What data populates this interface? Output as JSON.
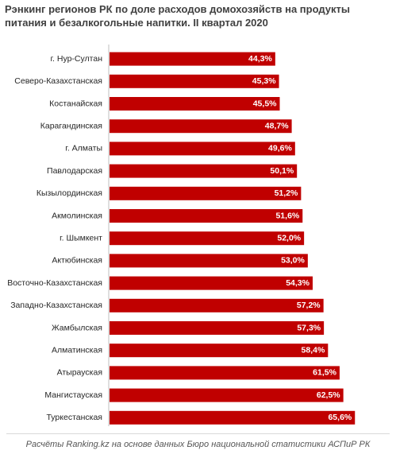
{
  "chart_data": {
    "type": "bar",
    "orientation": "horizontal",
    "title": "Рэнкинг регионов РК по доле расходов домохозяйств на продукты питания и безалкогольные напитки. II квартал 2020",
    "title_lines": [
      "Рэнкинг регионов РК по доле расходов домохозяйств на продукты",
      "питания и безалкогольные напитки. II квартал 2020"
    ],
    "categories": [
      "г. Нур-Султан",
      "Северо-Казахстанская",
      "Костанайская",
      "Карагандинская",
      "г. Алматы",
      "Павлодарская",
      "Кызылординская",
      "Акмолинская",
      "г. Шымкент",
      "Актюбинская",
      "Восточно-Казахстанская",
      "Западно-Казахстанская",
      "Жамбылская",
      "Алматинская",
      "Атырауская",
      "Мангистауская",
      "Туркестанская"
    ],
    "values": [
      44.3,
      45.3,
      45.5,
      48.7,
      49.6,
      50.1,
      51.2,
      51.6,
      52.0,
      53.0,
      54.3,
      57.2,
      57.3,
      58.4,
      61.5,
      62.5,
      65.6
    ],
    "value_labels": [
      "44,3%",
      "45,3%",
      "45,5%",
      "48,7%",
      "49,6%",
      "50,1%",
      "51,2%",
      "51,6%",
      "52,0%",
      "53,0%",
      "54,3%",
      "57,2%",
      "57,3%",
      "58,4%",
      "61,5%",
      "62,5%",
      "65,6%"
    ],
    "unit": "%",
    "xlim": [
      0,
      70
    ],
    "grid": false,
    "legend": "none",
    "bar_color": "#c00000",
    "label_color": "#ffffff"
  },
  "footer": {
    "source": "Расчёты Ranking.kz на основе данных Бюро национальной статистики АСПиР РК"
  }
}
